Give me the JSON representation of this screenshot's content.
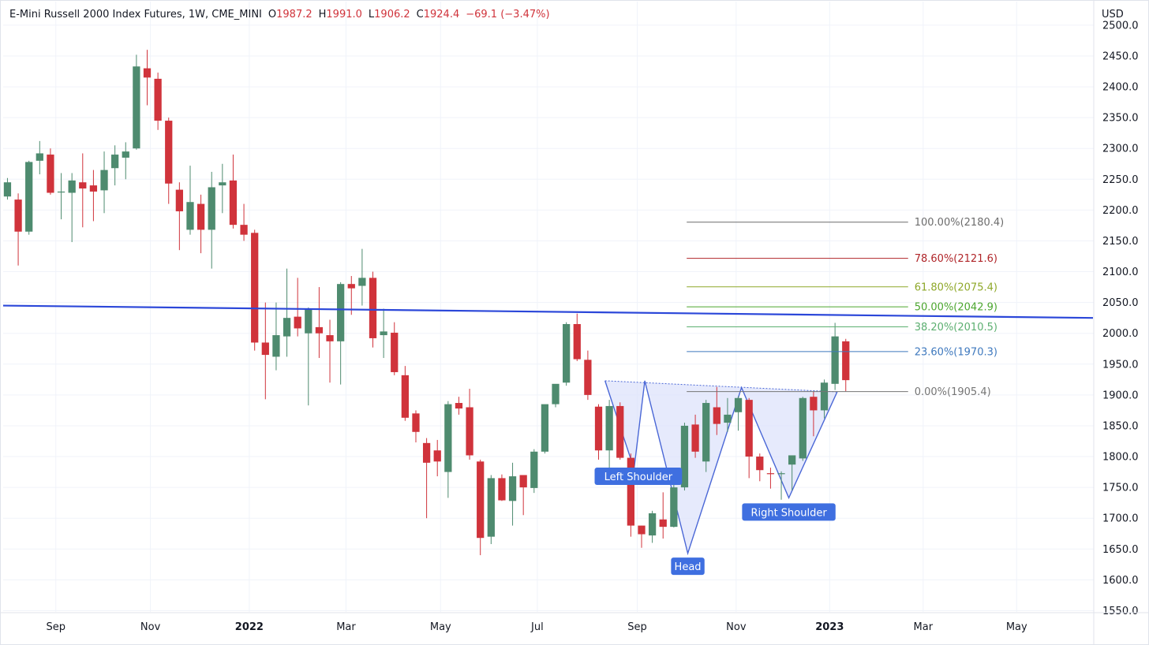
{
  "header": {
    "symbol": "E-Mini Russell 2000 Index Futures, 1W, CME_MINI",
    "o_label": "O",
    "o_value": "1987.2",
    "h_label": "H",
    "h_value": "1991.0",
    "l_label": "L",
    "l_value": "1906.2",
    "c_label": "C",
    "c_value": "1924.4",
    "change": "−69.1 (−3.47%)"
  },
  "currency": "USD",
  "colors": {
    "up": "#4e8b6f",
    "down": "#d0333b",
    "trendline": "#2b47d9",
    "pattern_fill": "#dde3fb",
    "pattern_line": "#4a67d6",
    "label_bg": "#3f6fe0"
  },
  "chart_data": {
    "type": "candlestick",
    "y_axis": {
      "ticks": [
        1550,
        1600,
        1650,
        1700,
        1750,
        1800,
        1850,
        1900,
        1950,
        2000,
        2050,
        2100,
        2150,
        2200,
        2250,
        2300,
        2350,
        2400,
        2450,
        2500
      ],
      "tick_labels": [
        "1550.0",
        "1600.0",
        "1650.0",
        "1700.0",
        "1750.0",
        "1800.0",
        "1850.0",
        "1900.0",
        "1950.0",
        "2000.0",
        "2050.0",
        "2100.0",
        "2150.0",
        "2200.0",
        "2250.0",
        "2300.0",
        "2350.0",
        "2400.0",
        "2450.0",
        "2500.0"
      ],
      "range": [
        1548,
        2505
      ]
    },
    "x_axis": {
      "labels": [
        "Sep",
        "Nov",
        "2022",
        "Mar",
        "May",
        "Jul",
        "Sep",
        "Nov",
        "2023",
        "Mar",
        "May"
      ],
      "bold": [
        false,
        false,
        true,
        false,
        false,
        false,
        false,
        false,
        true,
        false,
        false
      ],
      "label_week_index": [
        4.5,
        13.3,
        22.5,
        31.5,
        40.3,
        49.3,
        58.6,
        67.8,
        76.5,
        85.2,
        93.9
      ],
      "week_range": [
        -0.4,
        101
      ]
    },
    "candles": [
      {
        "o": 2222,
        "h": 2252,
        "l": 2217,
        "c": 2245
      },
      {
        "o": 2217,
        "h": 2227,
        "l": 2110,
        "c": 2165
      },
      {
        "o": 2165,
        "h": 2280,
        "l": 2160,
        "c": 2278
      },
      {
        "o": 2280,
        "h": 2312,
        "l": 2258,
        "c": 2292
      },
      {
        "o": 2290,
        "h": 2300,
        "l": 2225,
        "c": 2228
      },
      {
        "o": 2230,
        "h": 2260,
        "l": 2185,
        "c": 2230
      },
      {
        "o": 2228,
        "h": 2260,
        "l": 2148,
        "c": 2248
      },
      {
        "o": 2245,
        "h": 2292,
        "l": 2172,
        "c": 2235
      },
      {
        "o": 2240,
        "h": 2265,
        "l": 2182,
        "c": 2230
      },
      {
        "o": 2232,
        "h": 2295,
        "l": 2195,
        "c": 2265
      },
      {
        "o": 2268,
        "h": 2305,
        "l": 2240,
        "c": 2290
      },
      {
        "o": 2285,
        "h": 2310,
        "l": 2250,
        "c": 2295
      },
      {
        "o": 2300,
        "h": 2452,
        "l": 2298,
        "c": 2433
      },
      {
        "o": 2430,
        "h": 2460,
        "l": 2370,
        "c": 2415
      },
      {
        "o": 2413,
        "h": 2423,
        "l": 2330,
        "c": 2345
      },
      {
        "o": 2345,
        "h": 2350,
        "l": 2210,
        "c": 2243
      },
      {
        "o": 2233,
        "h": 2245,
        "l": 2135,
        "c": 2198
      },
      {
        "o": 2168,
        "h": 2272,
        "l": 2160,
        "c": 2213
      },
      {
        "o": 2210,
        "h": 2225,
        "l": 2130,
        "c": 2168
      },
      {
        "o": 2168,
        "h": 2262,
        "l": 2105,
        "c": 2237
      },
      {
        "o": 2240,
        "h": 2275,
        "l": 2195,
        "c": 2245
      },
      {
        "o": 2248,
        "h": 2290,
        "l": 2170,
        "c": 2176
      },
      {
        "o": 2176,
        "h": 2210,
        "l": 2150,
        "c": 2160
      },
      {
        "o": 2163,
        "h": 2168,
        "l": 1972,
        "c": 1985
      },
      {
        "o": 1985,
        "h": 2050,
        "l": 1893,
        "c": 1965
      },
      {
        "o": 1962,
        "h": 2050,
        "l": 1940,
        "c": 1997
      },
      {
        "o": 1995,
        "h": 2105,
        "l": 1962,
        "c": 2025
      },
      {
        "o": 2027,
        "h": 2090,
        "l": 1995,
        "c": 2008
      },
      {
        "o": 2000,
        "h": 2042,
        "l": 1883,
        "c": 2040
      },
      {
        "o": 2010,
        "h": 2075,
        "l": 1960,
        "c": 2000
      },
      {
        "o": 1997,
        "h": 2022,
        "l": 1920,
        "c": 1987
      },
      {
        "o": 1987,
        "h": 2083,
        "l": 1917,
        "c": 2080
      },
      {
        "o": 2080,
        "h": 2093,
        "l": 2030,
        "c": 2073
      },
      {
        "o": 2077,
        "h": 2137,
        "l": 2045,
        "c": 2090
      },
      {
        "o": 2090,
        "h": 2100,
        "l": 1977,
        "c": 1992
      },
      {
        "o": 1997,
        "h": 2040,
        "l": 1960,
        "c": 2003
      },
      {
        "o": 2001,
        "h": 2018,
        "l": 1932,
        "c": 1937
      },
      {
        "o": 1932,
        "h": 1947,
        "l": 1858,
        "c": 1863
      },
      {
        "o": 1870,
        "h": 1875,
        "l": 1823,
        "c": 1840
      },
      {
        "o": 1822,
        "h": 1830,
        "l": 1700,
        "c": 1790
      },
      {
        "o": 1810,
        "h": 1827,
        "l": 1768,
        "c": 1792
      },
      {
        "o": 1775,
        "h": 1890,
        "l": 1733,
        "c": 1885
      },
      {
        "o": 1887,
        "h": 1897,
        "l": 1868,
        "c": 1878
      },
      {
        "o": 1880,
        "h": 1910,
        "l": 1795,
        "c": 1802
      },
      {
        "o": 1792,
        "h": 1795,
        "l": 1640,
        "c": 1668
      },
      {
        "o": 1670,
        "h": 1770,
        "l": 1658,
        "c": 1765
      },
      {
        "o": 1765,
        "h": 1771,
        "l": 1728,
        "c": 1729
      },
      {
        "o": 1728,
        "h": 1790,
        "l": 1688,
        "c": 1768
      },
      {
        "o": 1770,
        "h": 1768,
        "l": 1705,
        "c": 1750
      },
      {
        "o": 1749,
        "h": 1812,
        "l": 1741,
        "c": 1808
      },
      {
        "o": 1808,
        "h": 1877,
        "l": 1805,
        "c": 1885
      },
      {
        "o": 1885,
        "h": 1915,
        "l": 1880,
        "c": 1918
      },
      {
        "o": 1920,
        "h": 2018,
        "l": 1915,
        "c": 2015
      },
      {
        "o": 2015,
        "h": 2032,
        "l": 1955,
        "c": 1958
      },
      {
        "o": 1957,
        "h": 1972,
        "l": 1892,
        "c": 1900
      },
      {
        "o": 1881,
        "h": 1885,
        "l": 1795,
        "c": 1810
      },
      {
        "o": 1810,
        "h": 1892,
        "l": 1780,
        "c": 1882
      },
      {
        "o": 1882,
        "h": 1888,
        "l": 1795,
        "c": 1798
      },
      {
        "o": 1798,
        "h": 1805,
        "l": 1670,
        "c": 1688
      },
      {
        "o": 1688,
        "h": 1688,
        "l": 1652,
        "c": 1674
      },
      {
        "o": 1672,
        "h": 1712,
        "l": 1660,
        "c": 1708
      },
      {
        "o": 1698,
        "h": 1742,
        "l": 1667,
        "c": 1686
      },
      {
        "o": 1686,
        "h": 1765,
        "l": 1685,
        "c": 1750
      },
      {
        "o": 1750,
        "h": 1855,
        "l": 1745,
        "c": 1850
      },
      {
        "o": 1852,
        "h": 1868,
        "l": 1798,
        "c": 1808
      },
      {
        "o": 1792,
        "h": 1892,
        "l": 1775,
        "c": 1887
      },
      {
        "o": 1880,
        "h": 1913,
        "l": 1835,
        "c": 1853
      },
      {
        "o": 1855,
        "h": 1895,
        "l": 1840,
        "c": 1868
      },
      {
        "o": 1872,
        "h": 1898,
        "l": 1842,
        "c": 1895
      },
      {
        "o": 1892,
        "h": 1895,
        "l": 1765,
        "c": 1800
      },
      {
        "o": 1800,
        "h": 1805,
        "l": 1760,
        "c": 1778
      },
      {
        "o": 1773,
        "h": 1782,
        "l": 1748,
        "c": 1772
      },
      {
        "o": 1773,
        "h": 1776,
        "l": 1730,
        "c": 1773
      },
      {
        "o": 1787,
        "h": 1800,
        "l": 1745,
        "c": 1802
      },
      {
        "o": 1797,
        "h": 1897,
        "l": 1793,
        "c": 1895
      },
      {
        "o": 1897,
        "h": 1905,
        "l": 1833,
        "c": 1875
      },
      {
        "o": 1875,
        "h": 1925,
        "l": 1862,
        "c": 1920
      },
      {
        "o": 1918,
        "h": 2017,
        "l": 1908,
        "c": 1995
      },
      {
        "o": 1987,
        "h": 1991,
        "l": 1906,
        "c": 1924
      }
    ],
    "trendline": {
      "label": "",
      "points": [
        {
          "week": -0.4,
          "price": 2045
        },
        {
          "week": 101,
          "price": 2025
        }
      ]
    },
    "pattern": {
      "type": "head-and-shoulders-inverse",
      "points": [
        {
          "week": 55.6,
          "price": 1923
        },
        {
          "week": 58.3,
          "price": 1780
        },
        {
          "week": 59.3,
          "price": 1923
        },
        {
          "week": 63.3,
          "price": 1643
        },
        {
          "week": 68.3,
          "price": 1912
        },
        {
          "week": 72.7,
          "price": 1733
        },
        {
          "week": 77.2,
          "price": 1905
        }
      ],
      "neckline_end": {
        "week": 77.2,
        "price": 1905
      },
      "labels": [
        {
          "text": "Left Shoulder",
          "week": 58.7,
          "price": 1768
        },
        {
          "text": "Head",
          "week": 63.3,
          "price": 1622
        },
        {
          "text": "Right Shoulder",
          "week": 72.7,
          "price": 1710
        }
      ]
    },
    "fibonacci": {
      "x_start_week": 63.2,
      "x_end_week": 83.8,
      "levels": [
        {
          "label": "100.00%(2180.4)",
          "price": 2180.4,
          "color": "#6c6c6c"
        },
        {
          "label": "78.60%(2121.6)",
          "price": 2121.6,
          "color": "#b02529"
        },
        {
          "label": "61.80%(2075.4)",
          "price": 2075.4,
          "color": "#8fa82a"
        },
        {
          "label": "50.00%(2042.9)",
          "price": 2042.9,
          "color": "#4ca62f"
        },
        {
          "label": "38.20%(2010.5)",
          "price": 2010.5,
          "color": "#5caf70"
        },
        {
          "label": "23.60%(1970.3)",
          "price": 1970.3,
          "color": "#3f79be"
        },
        {
          "label": "0.00%(1905.4)",
          "price": 1905.4,
          "color": "#757575"
        }
      ]
    }
  }
}
